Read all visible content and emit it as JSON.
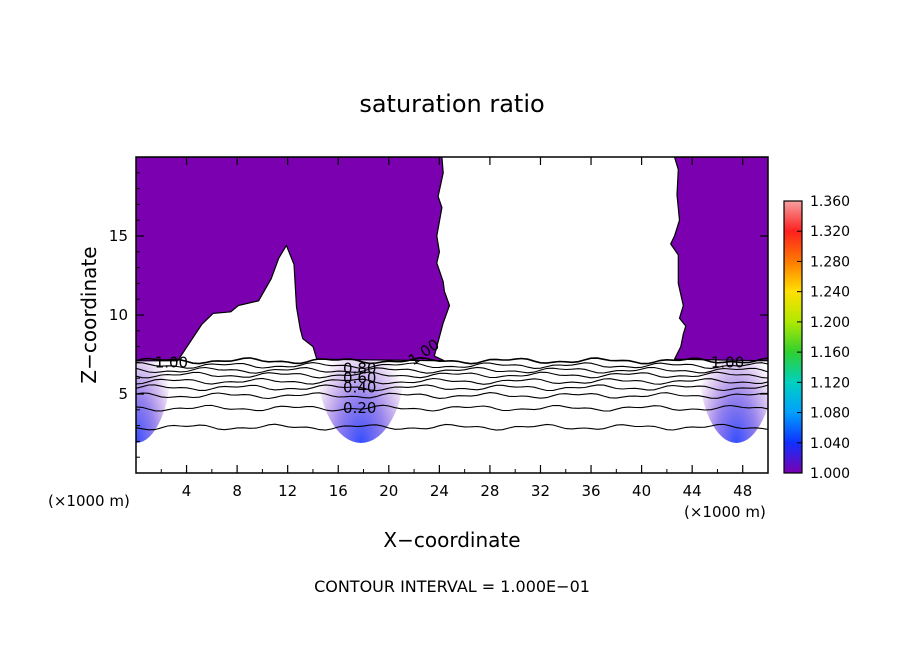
{
  "chart_data": {
    "type": "contour",
    "title": "saturation ratio",
    "xlabel": "X−coordinate",
    "ylabel": "Z−coordinate",
    "x_unit_left": "(×1000 m)",
    "x_unit_right": "(×1000 m)",
    "xlim": [
      0,
      50
    ],
    "ylim": [
      0,
      20
    ],
    "x_ticks": [
      4,
      8,
      12,
      16,
      20,
      24,
      28,
      32,
      36,
      40,
      44,
      48
    ],
    "y_ticks": [
      5,
      10,
      15
    ],
    "colorbar": {
      "range": [
        1.0,
        1.36
      ],
      "labels": [
        "1.360",
        "1.320",
        "1.280",
        "1.240",
        "1.200",
        "1.160",
        "1.120",
        "1.080",
        "1.040",
        "1.000"
      ],
      "colors": [
        "#f5a0a0",
        "#ff2020",
        "#ff7a00",
        "#ffe000",
        "#b0e800",
        "#30d030",
        "#00d0c0",
        "#00a0ff",
        "#1030ff",
        "#7a00b0"
      ]
    },
    "contour_labels": [
      {
        "text": "1.00",
        "x": 2.8,
        "z": 7.0
      },
      {
        "text": "0.80",
        "x": 17.7,
        "z": 6.6
      },
      {
        "text": "0.60",
        "x": 17.7,
        "z": 6.0
      },
      {
        "text": "0.40",
        "x": 17.7,
        "z": 5.4
      },
      {
        "text": "0.20",
        "x": 17.7,
        "z": 4.1
      },
      {
        "text": "1.00",
        "x": 23.0,
        "z": 7.7
      },
      {
        "text": "1.00",
        "x": 46.8,
        "z": 7.0
      }
    ],
    "contour_levels_z": [
      7.1,
      6.8,
      6.5,
      6.2,
      5.8,
      5.4,
      4.9,
      4.1,
      2.9
    ],
    "supersaturated_regions": [
      [
        [
          0,
          20
        ],
        [
          0,
          7.1
        ],
        [
          3.3,
          7.1
        ],
        [
          5.2,
          9.4
        ],
        [
          6.1,
          10.1
        ],
        [
          7.5,
          10.2
        ],
        [
          8.1,
          10.6
        ],
        [
          9.7,
          10.9
        ],
        [
          10.7,
          12.3
        ],
        [
          11.3,
          13.6
        ],
        [
          11.9,
          14.4
        ],
        [
          12.5,
          13.2
        ],
        [
          12.7,
          10.5
        ],
        [
          13.0,
          9.1
        ],
        [
          13.2,
          8.5
        ],
        [
          14.0,
          8.0
        ],
        [
          14.3,
          7.2
        ],
        [
          24.4,
          7.1
        ],
        [
          23.6,
          7.4
        ],
        [
          24.3,
          9.5
        ],
        [
          24.8,
          10.6
        ],
        [
          24.4,
          11.5
        ],
        [
          24.3,
          12.1
        ],
        [
          23.8,
          13.3
        ],
        [
          24.0,
          14.0
        ],
        [
          23.8,
          15.0
        ],
        [
          24.2,
          16.8
        ],
        [
          23.9,
          17.5
        ],
        [
          24.3,
          19.0
        ],
        [
          24.2,
          20.0
        ]
      ],
      [
        [
          42.6,
          20
        ],
        [
          42.9,
          19.2
        ],
        [
          42.8,
          17.6
        ],
        [
          43.0,
          16.0
        ],
        [
          42.6,
          15.0
        ],
        [
          42.3,
          14.5
        ],
        [
          42.9,
          13.8
        ],
        [
          42.9,
          12.0
        ],
        [
          43.3,
          10.6
        ],
        [
          43.0,
          9.8
        ],
        [
          43.5,
          9.3
        ],
        [
          43.3,
          8.8
        ],
        [
          43.1,
          8.0
        ],
        [
          42.6,
          7.2
        ],
        [
          50,
          7.1
        ],
        [
          50,
          20
        ]
      ]
    ],
    "annotation": "CONTOUR INTERVAL = 1.000E−01"
  }
}
